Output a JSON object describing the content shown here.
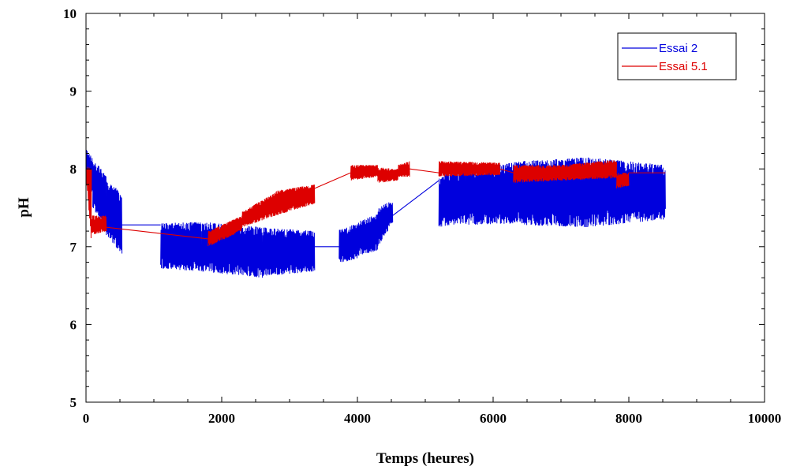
{
  "chart_data": {
    "type": "line",
    "title": "",
    "xlabel": "Temps (heures)",
    "ylabel": "pH",
    "xlim": [
      0,
      10000
    ],
    "ylim": [
      5,
      10
    ],
    "x_ticks": [
      0,
      2000,
      4000,
      6000,
      8000,
      10000
    ],
    "y_ticks": [
      5,
      6,
      7,
      8,
      9,
      10
    ],
    "x_tick_labels": [
      "0",
      "2000",
      "4000",
      "6000",
      "8000",
      "10000"
    ],
    "y_tick_labels": [
      "5",
      "6",
      "7",
      "8",
      "9",
      "10"
    ],
    "grid": false,
    "legend_position": "top-right",
    "series": [
      {
        "name": "Essai 2",
        "color": "#0000dd",
        "segments": [
          {
            "x": [
              0,
              100
            ],
            "y_low": [
              7.95,
              7.65
            ],
            "y_high": [
              8.25,
              8.15
            ]
          },
          {
            "x": [
              100,
              300
            ],
            "y_low": [
              7.5,
              7.2
            ],
            "y_high": [
              8.15,
              7.9
            ]
          },
          {
            "x": [
              300,
              530
            ],
            "y_low": [
              7.15,
              6.9
            ],
            "y_high": [
              7.85,
              7.7
            ]
          },
          {
            "x": [
              1100,
              1700
            ],
            "y_low": [
              6.72,
              6.68
            ],
            "y_high": [
              7.3,
              7.32
            ]
          },
          {
            "x": [
              1700,
              2600
            ],
            "y_low": [
              6.68,
              6.6
            ],
            "y_high": [
              7.32,
              7.25
            ]
          },
          {
            "x": [
              2600,
              3370
            ],
            "y_low": [
              6.62,
              6.68
            ],
            "y_high": [
              7.25,
              7.2
            ]
          },
          {
            "x": [
              3730,
              4000
            ],
            "y_low": [
              6.78,
              6.85
            ],
            "y_high": [
              7.22,
              7.3
            ]
          },
          {
            "x": [
              4000,
              4300
            ],
            "y_low": [
              6.88,
              6.95
            ],
            "y_high": [
              7.32,
              7.42
            ]
          },
          {
            "x": [
              4300,
              4520
            ],
            "y_low": [
              7.0,
              7.3
            ],
            "y_high": [
              7.5,
              7.6
            ]
          },
          {
            "x": [
              5200,
              5600
            ],
            "y_low": [
              7.25,
              7.3
            ],
            "y_high": [
              7.9,
              8.05
            ]
          },
          {
            "x": [
              5600,
              6400
            ],
            "y_low": [
              7.28,
              7.3
            ],
            "y_high": [
              8.0,
              8.1
            ]
          },
          {
            "x": [
              6400,
              7400
            ],
            "y_low": [
              7.28,
              7.25
            ],
            "y_high": [
              8.1,
              8.15
            ]
          },
          {
            "x": [
              7400,
              8540
            ],
            "y_low": [
              7.25,
              7.35
            ],
            "y_high": [
              8.15,
              8.05
            ]
          }
        ],
        "connectors": [
          {
            "x": [
              530,
              1100
            ],
            "y": [
              7.28,
              7.28
            ]
          },
          {
            "x": [
              3370,
              3730
            ],
            "y": [
              7.0,
              7.0
            ]
          },
          {
            "x": [
              4520,
              5200
            ],
            "y": [
              7.4,
              7.85
            ]
          },
          {
            "x": [
              5400,
              5700
            ],
            "y": [
              7.55,
              7.9
            ]
          }
        ]
      },
      {
        "name": "Essai 5.1",
        "color": "#dd0000",
        "segments": [
          {
            "x": [
              0,
              80
            ],
            "y_low": [
              7.9,
              7.05
            ],
            "y_high": [
              8.05,
              8.0
            ]
          },
          {
            "x": [
              80,
              300
            ],
            "y_low": [
              7.15,
              7.2
            ],
            "y_high": [
              7.4,
              7.4
            ]
          },
          {
            "x": [
              1800,
              2300
            ],
            "y_low": [
              7.0,
              7.2
            ],
            "y_high": [
              7.2,
              7.4
            ]
          },
          {
            "x": [
              2300,
              2800
            ],
            "y_low": [
              7.25,
              7.4
            ],
            "y_high": [
              7.45,
              7.7
            ]
          },
          {
            "x": [
              2800,
              3370
            ],
            "y_low": [
              7.4,
              7.55
            ],
            "y_high": [
              7.72,
              7.8
            ]
          },
          {
            "x": [
              3900,
              4300
            ],
            "y_low": [
              7.85,
              7.9
            ],
            "y_high": [
              8.05,
              8.05
            ]
          },
          {
            "x": [
              4300,
              4600
            ],
            "y_low": [
              7.82,
              7.85
            ],
            "y_high": [
              8.02,
              8.0
            ]
          },
          {
            "x": [
              4600,
              4770
            ],
            "y_low": [
              7.9,
              7.9
            ],
            "y_high": [
              8.05,
              8.1
            ]
          },
          {
            "x": [
              5200,
              6100
            ],
            "y_low": [
              7.9,
              7.92
            ],
            "y_high": [
              8.1,
              8.08
            ]
          },
          {
            "x": [
              6300,
              7000
            ],
            "y_low": [
              7.82,
              7.85
            ],
            "y_high": [
              8.05,
              8.05
            ]
          },
          {
            "x": [
              7000,
              7820
            ],
            "y_low": [
              7.85,
              7.88
            ],
            "y_high": [
              8.05,
              8.12
            ]
          },
          {
            "x": [
              7820,
              8000
            ],
            "y_low": [
              7.75,
              7.78
            ],
            "y_high": [
              7.95,
              7.95
            ]
          }
        ],
        "connectors": [
          {
            "x": [
              300,
              1800
            ],
            "y": [
              7.25,
              7.1
            ]
          },
          {
            "x": [
              3370,
              3900
            ],
            "y": [
              7.75,
              7.95
            ]
          },
          {
            "x": [
              4770,
              5200
            ],
            "y": [
              8.0,
              7.95
            ]
          },
          {
            "x": [
              6100,
              6300
            ],
            "y": [
              8.0,
              7.95
            ]
          },
          {
            "x": [
              8000,
              8540
            ],
            "y": [
              7.95,
              7.95
            ]
          }
        ]
      }
    ]
  }
}
